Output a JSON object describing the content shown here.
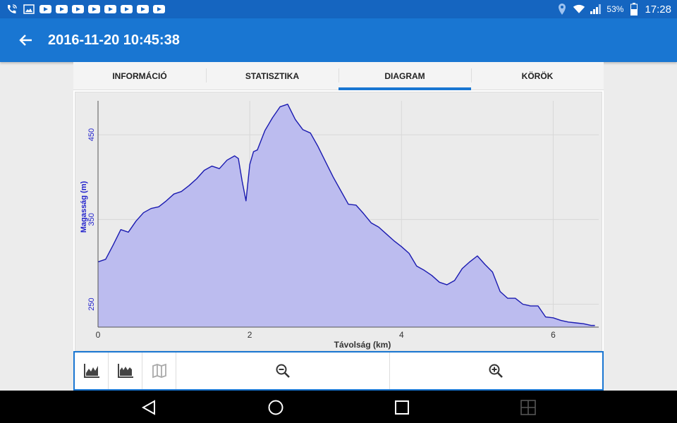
{
  "status": {
    "time": "17:28",
    "battery": "53%",
    "notification_icons": [
      "phone-wifi-icon",
      "image-icon",
      "youtube-icon",
      "youtube-icon",
      "youtube-icon",
      "youtube-icon",
      "youtube-icon",
      "youtube-icon",
      "youtube-icon",
      "youtube-icon"
    ]
  },
  "appbar": {
    "title": "2016-11-20 10:45:38"
  },
  "tabs": [
    {
      "label": "INFORMÁCIÓ",
      "active": false
    },
    {
      "label": "STATISZTIKA",
      "active": false
    },
    {
      "label": "DIAGRAM",
      "active": true
    },
    {
      "label": "KÖRÖK",
      "active": false
    }
  ],
  "colors": {
    "primary": "#1976d2",
    "statusbar": "#1565c0",
    "area_fill": "#bcbcef",
    "line": "#1a1ab0",
    "axis_text": "#2222cc"
  },
  "chart_data": {
    "type": "area",
    "xlabel": "Távolság (km)",
    "ylabel": "Magasság (m)",
    "xlim": [
      0,
      6.6
    ],
    "ylim": [
      223,
      490
    ],
    "xticks": [
      "0",
      "2",
      "4",
      "6"
    ],
    "yticks": [
      "250",
      "350",
      "450"
    ],
    "grid": true,
    "x": [
      0,
      0.1,
      0.2,
      0.3,
      0.4,
      0.5,
      0.6,
      0.7,
      0.8,
      0.9,
      1.0,
      1.1,
      1.2,
      1.3,
      1.4,
      1.5,
      1.6,
      1.7,
      1.8,
      1.85,
      1.9,
      1.95,
      2.0,
      2.05,
      2.1,
      2.2,
      2.3,
      2.4,
      2.5,
      2.6,
      2.7,
      2.8,
      2.9,
      3.0,
      3.1,
      3.2,
      3.3,
      3.4,
      3.5,
      3.6,
      3.7,
      3.8,
      3.9,
      4.0,
      4.1,
      4.2,
      4.3,
      4.4,
      4.5,
      4.6,
      4.7,
      4.8,
      4.9,
      5.0,
      5.1,
      5.2,
      5.3,
      5.4,
      5.5,
      5.6,
      5.7,
      5.8,
      5.9,
      6.0,
      6.1,
      6.2,
      6.3,
      6.4,
      6.5,
      6.55
    ],
    "y": [
      300,
      303,
      320,
      338,
      335,
      348,
      358,
      363,
      365,
      372,
      380,
      383,
      390,
      398,
      408,
      413,
      410,
      420,
      425,
      422,
      395,
      372,
      415,
      430,
      432,
      455,
      470,
      483,
      486,
      468,
      456,
      452,
      436,
      418,
      400,
      384,
      368,
      367,
      357,
      346,
      341,
      333,
      325,
      318,
      310,
      295,
      290,
      284,
      276,
      273,
      278,
      292,
      300,
      307,
      297,
      288,
      265,
      257,
      257,
      250,
      248,
      248,
      235,
      234,
      231,
      229,
      228,
      227,
      225,
      225
    ]
  },
  "toolbar": {
    "buttons": [
      "chart-speed-icon",
      "chart-elevation-icon",
      "map-icon",
      "zoom-out-icon",
      "zoom-in-icon"
    ]
  },
  "navbar": [
    "back-nav-icon",
    "home-nav-icon",
    "recents-nav-icon",
    "screen-toggle-icon"
  ]
}
